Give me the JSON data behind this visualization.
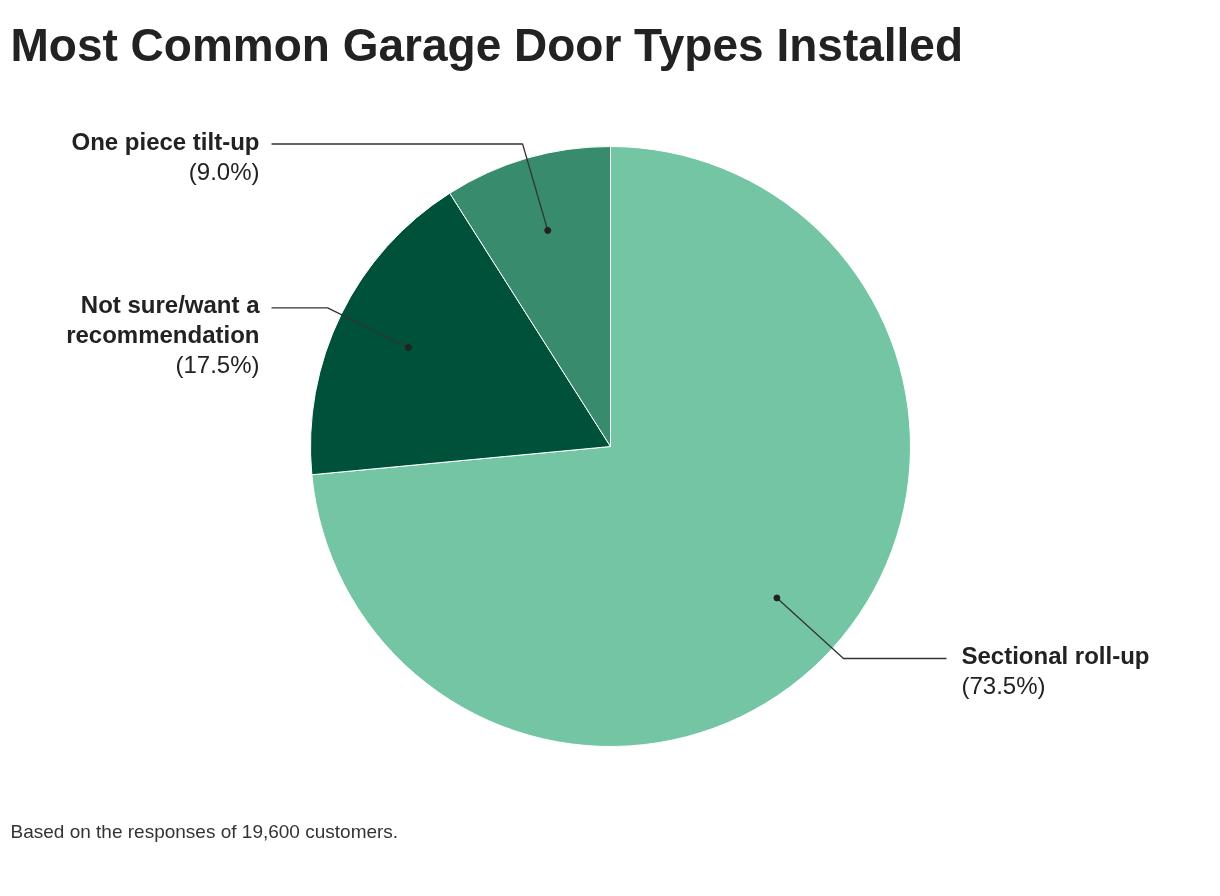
{
  "chart_data": {
    "type": "pie",
    "title": "Most Common Garage Door Types Installed",
    "categories": [
      "Sectional roll-up",
      "Not sure/want a recommendation",
      "One piece tilt-up"
    ],
    "values": [
      73.5,
      17.5,
      9.0
    ],
    "value_labels": [
      "(73.5%)",
      "(17.5%)",
      "(9.0%)"
    ],
    "colors": [
      "#74c5a4",
      "#00513a",
      "#388b6d"
    ],
    "annotations": [
      "Based on the responses of 19,600 customers."
    ]
  }
}
